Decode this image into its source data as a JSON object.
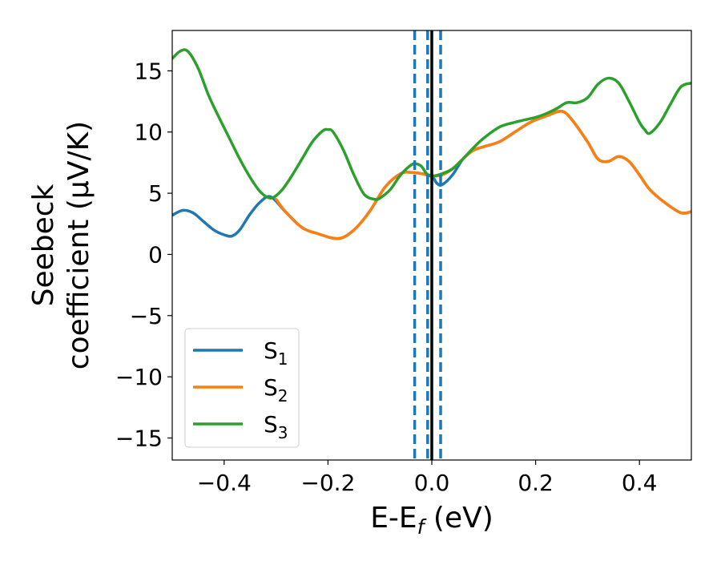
{
  "chart_data": {
    "type": "line",
    "xlabel": {
      "base": "E-E",
      "sub": "f",
      "rest": " (eV)"
    },
    "ylabel": {
      "line1": "Seebeck",
      "line2": "coefficient  (μV/K)"
    },
    "xlim": [
      -0.5,
      0.5
    ],
    "ylim": [
      -16.8,
      18.3
    ],
    "xticks": [
      -0.4,
      -0.2,
      0.0,
      0.2,
      0.4
    ],
    "xtick_labels": [
      "−0.4",
      "−0.2",
      "0.0",
      "0.2",
      "0.4"
    ],
    "yticks": [
      -15,
      -10,
      -5,
      0,
      5,
      10,
      15
    ],
    "ytick_labels": [
      "−15",
      "−10",
      "−5",
      "0",
      "5",
      "10",
      "15"
    ],
    "grid": false,
    "legend_position": "lower-left",
    "vlines": [
      {
        "x": -0.033,
        "style": "dashed",
        "color": "#1f77b4"
      },
      {
        "x": -0.008,
        "style": "dashed",
        "color": "#1f77b4"
      },
      {
        "x": 0.017,
        "style": "dashed",
        "color": "#1f77b4"
      },
      {
        "x": 0.0,
        "style": "solid",
        "color": "#000000"
      }
    ],
    "series": [
      {
        "name": "S",
        "sub": "1",
        "color": "#1f77b4",
        "x": [
          -0.5,
          -0.48,
          -0.46,
          -0.44,
          -0.42,
          -0.4,
          -0.385,
          -0.37,
          -0.35,
          -0.33,
          -0.31,
          -0.28,
          -0.25,
          -0.22,
          -0.18,
          -0.15,
          -0.12,
          -0.09,
          -0.06,
          -0.04,
          -0.02,
          0.0,
          0.01,
          0.02,
          0.04,
          0.06,
          0.08,
          0.1,
          0.13,
          0.16,
          0.19,
          0.22,
          0.25,
          0.27,
          0.3,
          0.32,
          0.34,
          0.36,
          0.38,
          0.4,
          0.42,
          0.45,
          0.48,
          0.5
        ],
        "y": [
          3.2,
          3.6,
          3.4,
          2.7,
          2.0,
          1.6,
          1.5,
          2.0,
          3.3,
          4.3,
          4.7,
          3.4,
          2.2,
          1.7,
          1.3,
          2.0,
          3.5,
          5.5,
          6.6,
          6.7,
          6.6,
          6.4,
          5.8,
          5.7,
          6.5,
          7.8,
          8.5,
          8.8,
          9.2,
          10.0,
          10.8,
          11.3,
          11.7,
          11.0,
          9.2,
          7.8,
          7.6,
          8.0,
          7.6,
          6.5,
          5.3,
          4.2,
          3.4,
          3.5
        ]
      },
      {
        "name": "S",
        "sub": "2",
        "color": "#ff7f0e",
        "x": [
          -0.3,
          -0.28,
          -0.25,
          -0.22,
          -0.18,
          -0.15,
          -0.12,
          -0.09,
          -0.06,
          -0.04,
          -0.02,
          0.0,
          0.02,
          0.04,
          0.06,
          0.08,
          0.1,
          0.13,
          0.16,
          0.19,
          0.22,
          0.25,
          0.27,
          0.3,
          0.32,
          0.34,
          0.36,
          0.38,
          0.4,
          0.42,
          0.45,
          0.48,
          0.5
        ],
        "y": [
          4.5,
          3.4,
          2.2,
          1.7,
          1.3,
          2.0,
          3.5,
          5.5,
          6.6,
          6.7,
          6.6,
          6.4,
          6.5,
          7.0,
          7.8,
          8.5,
          8.8,
          9.2,
          10.0,
          10.8,
          11.3,
          11.7,
          11.0,
          9.2,
          7.8,
          7.6,
          8.0,
          7.6,
          6.5,
          5.3,
          4.2,
          3.4,
          3.5
        ]
      },
      {
        "name": "S",
        "sub": "3",
        "color": "#2ca02c",
        "x": [
          -0.5,
          -0.485,
          -0.47,
          -0.45,
          -0.43,
          -0.41,
          -0.39,
          -0.37,
          -0.35,
          -0.33,
          -0.31,
          -0.29,
          -0.27,
          -0.25,
          -0.23,
          -0.21,
          -0.2,
          -0.19,
          -0.17,
          -0.15,
          -0.13,
          -0.11,
          -0.1,
          -0.08,
          -0.06,
          -0.04,
          -0.03,
          -0.02,
          -0.01,
          0.0,
          0.02,
          0.04,
          0.06,
          0.08,
          0.1,
          0.13,
          0.16,
          0.2,
          0.22,
          0.24,
          0.26,
          0.28,
          0.3,
          0.32,
          0.34,
          0.36,
          0.38,
          0.4,
          0.41,
          0.42,
          0.44,
          0.46,
          0.48,
          0.5
        ],
        "y": [
          16.0,
          16.6,
          16.6,
          15.2,
          13.0,
          11.2,
          9.5,
          7.8,
          6.3,
          5.1,
          4.6,
          5.2,
          6.4,
          7.8,
          9.2,
          10.1,
          10.2,
          10.0,
          8.5,
          6.5,
          4.9,
          4.5,
          4.6,
          5.3,
          6.5,
          7.3,
          7.4,
          7.2,
          6.6,
          6.4,
          6.6,
          7.0,
          7.8,
          8.7,
          9.5,
          10.4,
          10.8,
          11.2,
          11.5,
          11.9,
          12.4,
          12.4,
          12.8,
          13.9,
          14.4,
          14.0,
          12.5,
          10.8,
          10.2,
          9.9,
          10.8,
          12.3,
          13.7,
          14.0
        ]
      }
    ]
  }
}
